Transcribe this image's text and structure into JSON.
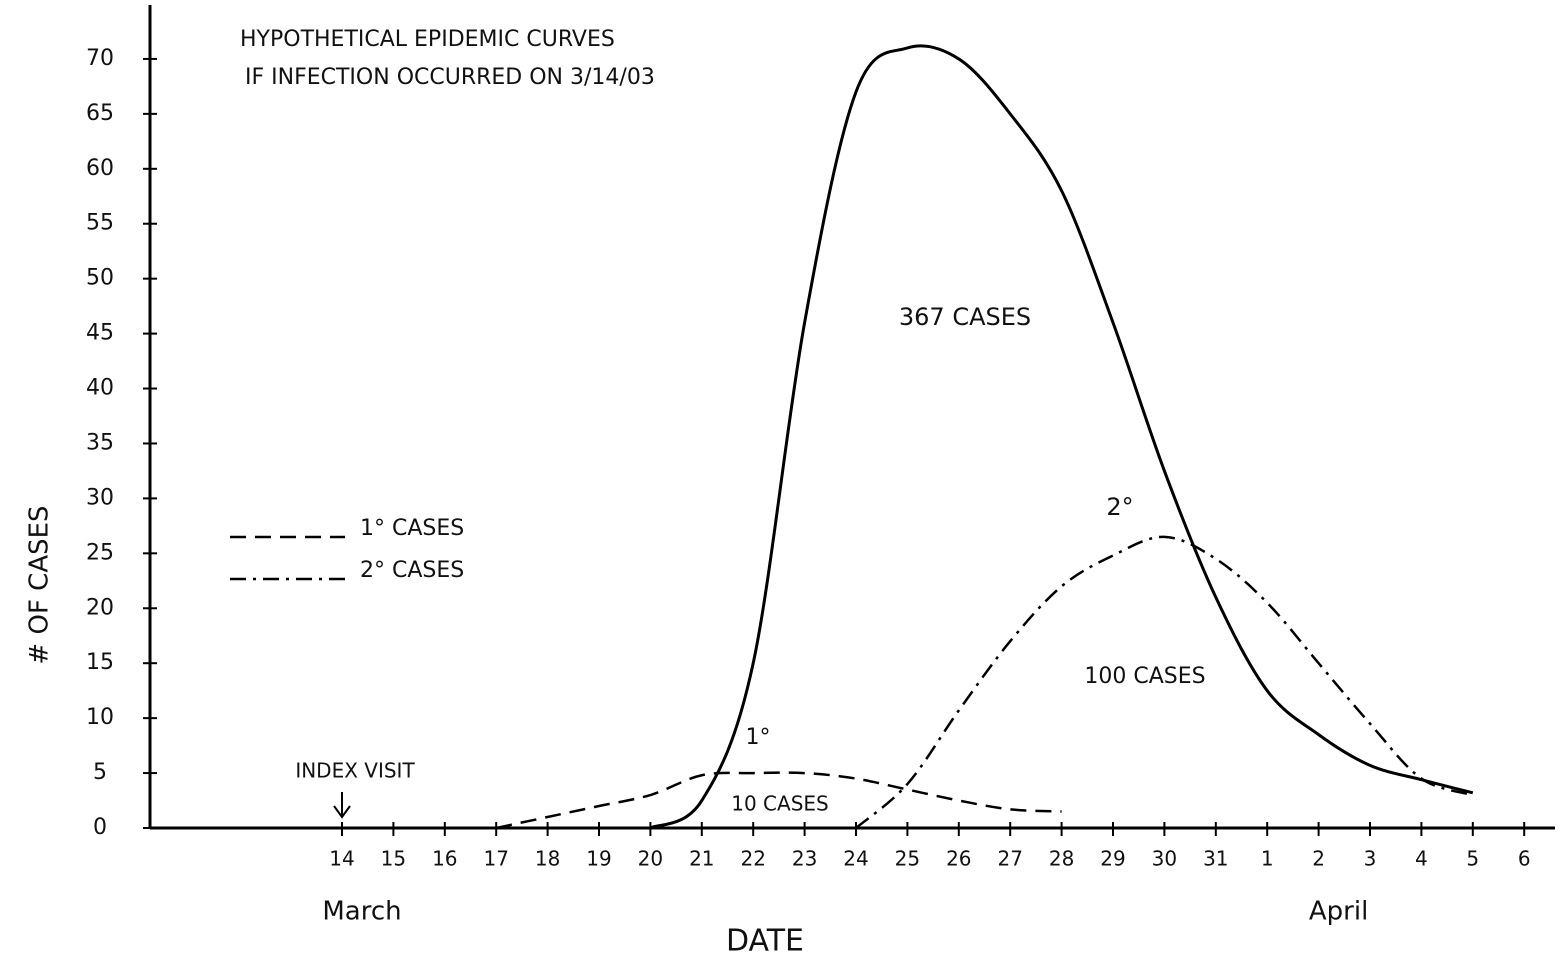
{
  "chart_data": {
    "type": "line",
    "title": "HYPOTHETICAL EPIDEMIC CURVES",
    "subtitle": "IF INFECTION OCCURRED ON 3/14/03",
    "x_label": "DATE",
    "y_label": "# OF CASES",
    "categories": [
      "14",
      "15",
      "16",
      "17",
      "18",
      "19",
      "20",
      "21",
      "22",
      "23",
      "24",
      "25",
      "26",
      "27",
      "28",
      "29",
      "30",
      "31",
      "1",
      "2",
      "3",
      "4",
      "5",
      "6"
    ],
    "month_labels": [
      {
        "text": "March",
        "category": 0
      },
      {
        "text": "April",
        "category": 19
      }
    ],
    "ylim": [
      0,
      75
    ],
    "yticks": [
      0,
      5,
      10,
      15,
      20,
      25,
      30,
      35,
      40,
      45,
      50,
      55,
      60,
      65,
      70
    ],
    "series": [
      {
        "color": "#000000",
        "style": "solid",
        "values": [
          null,
          null,
          null,
          null,
          null,
          null,
          0,
          2.5,
          15,
          46,
          67,
          71,
          70,
          65,
          58,
          46,
          32.5,
          21,
          12.5,
          8.5,
          5.7,
          4.4,
          3.2,
          null
        ]
      },
      {
        "name": "1° CASES",
        "color": "#000000",
        "style": "dashed",
        "values": [
          null,
          null,
          null,
          0,
          1,
          2,
          3,
          4.8,
          5,
          5,
          4.5,
          3.5,
          2.5,
          1.7,
          1.5,
          null,
          null,
          null,
          null,
          null,
          null,
          null,
          null,
          null
        ]
      },
      {
        "name": "2° CASES",
        "color": "#000000",
        "style": "dash-dot",
        "values": [
          null,
          null,
          null,
          null,
          null,
          null,
          null,
          null,
          null,
          null,
          0,
          4,
          10.7,
          17,
          22,
          24.8,
          26.5,
          24.5,
          20.5,
          15,
          9.5,
          4.5,
          3,
          null
        ]
      }
    ],
    "annotations": [
      {
        "text": "INDEX VISIT"
      },
      {
        "text": "367 CASES"
      },
      {
        "text": "10 CASES"
      },
      {
        "text": "100 CASES"
      },
      {
        "text": "1°"
      },
      {
        "text": "2°"
      }
    ]
  }
}
